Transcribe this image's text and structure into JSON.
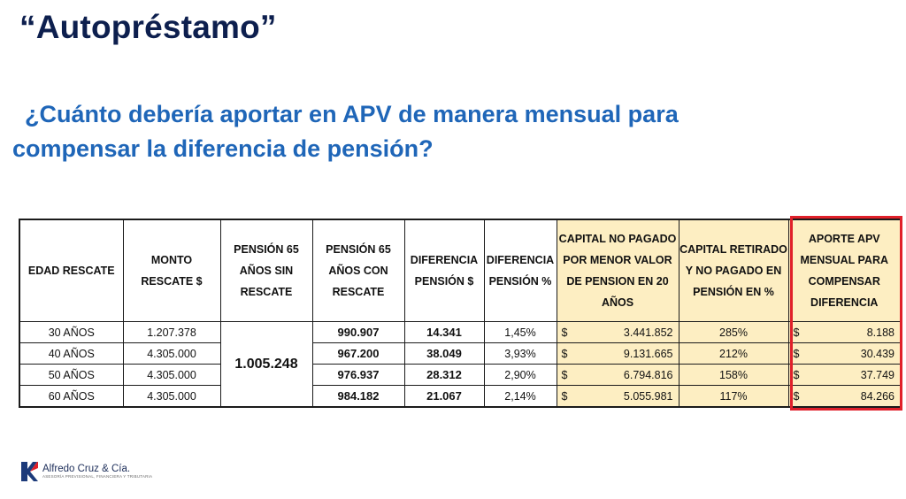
{
  "title": "“Autopréstamo”",
  "question": {
    "line1": "¿Cuánto debería aportar en APV de manera mensual para",
    "line2": "compensar la diferencia de pensión?"
  },
  "table": {
    "headers": [
      [
        "EDAD RESCATE"
      ],
      [
        "MONTO",
        "RESCATE $"
      ],
      [
        "PENSIÓN 65",
        "AÑOS SIN",
        "RESCATE"
      ],
      [
        "PENSIÓN 65",
        "AÑOS CON",
        "RESCATE"
      ],
      [
        "DIFERENCIA",
        "PENSIÓN $"
      ],
      [
        "DIFERENCIA",
        "PENSIÓN %"
      ],
      [
        "CAPITAL NO PAGADO",
        "POR MENOR VALOR",
        "DE PENSION EN 20",
        "AÑOS"
      ],
      [
        "CAPITAL RETIRADO",
        "Y NO PAGADO EN",
        "PENSIÓN EN %"
      ],
      [
        "APORTE APV",
        "MENSUAL PARA",
        "COMPENSAR",
        "DIFERENCIA"
      ]
    ],
    "pension_sin_rescate": "1.005.248",
    "currency_symbol": "$",
    "rows": [
      {
        "edad": "30 AÑOS",
        "monto": "1.207.378",
        "con_rescate": "990.907",
        "dif_pesos": "14.341",
        "dif_pct": "1,45%",
        "capital_no_pagado": "3.441.852",
        "capital_retirado_pct": "285%",
        "aporte_apv": "8.188"
      },
      {
        "edad": "40 AÑOS",
        "monto": "4.305.000",
        "con_rescate": "967.200",
        "dif_pesos": "38.049",
        "dif_pct": "3,93%",
        "capital_no_pagado": "9.131.665",
        "capital_retirado_pct": "212%",
        "aporte_apv": "30.439"
      },
      {
        "edad": "50 AÑOS",
        "monto": "4.305.000",
        "con_rescate": "976.937",
        "dif_pesos": "28.312",
        "dif_pct": "2,90%",
        "capital_no_pagado": "6.794.816",
        "capital_retirado_pct": "158%",
        "aporte_apv": "37.749"
      },
      {
        "edad": "60 AÑOS",
        "monto": "4.305.000",
        "con_rescate": "984.182",
        "dif_pesos": "21.067",
        "dif_pct": "2,14%",
        "capital_no_pagado": "5.055.981",
        "capital_retirado_pct": "117%",
        "aporte_apv": "84.266"
      }
    ]
  },
  "colors": {
    "title": "#0d1f4e",
    "question": "#1f66b8",
    "highlight_cells": "#fdeec2",
    "highlight_border": "#e0202a"
  },
  "footer": {
    "company": "Alfredo Cruz & Cía.",
    "tagline": "ASESORÍA PREVISIONAL, FINANCIERA Y TRIBUTARIA"
  }
}
